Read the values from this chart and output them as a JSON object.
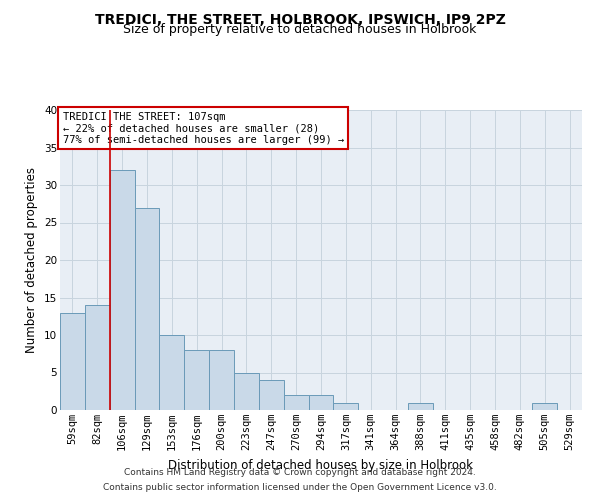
{
  "title": "TREDICI, THE STREET, HOLBROOK, IPSWICH, IP9 2PZ",
  "subtitle": "Size of property relative to detached houses in Holbrook",
  "xlabel": "Distribution of detached houses by size in Holbrook",
  "ylabel": "Number of detached properties",
  "categories": [
    "59sqm",
    "82sqm",
    "106sqm",
    "129sqm",
    "153sqm",
    "176sqm",
    "200sqm",
    "223sqm",
    "247sqm",
    "270sqm",
    "294sqm",
    "317sqm",
    "341sqm",
    "364sqm",
    "388sqm",
    "411sqm",
    "435sqm",
    "458sqm",
    "482sqm",
    "505sqm",
    "529sqm"
  ],
  "values": [
    13,
    14,
    32,
    27,
    10,
    8,
    8,
    5,
    4,
    2,
    2,
    1,
    0,
    0,
    1,
    0,
    0,
    0,
    0,
    1,
    0
  ],
  "bar_color": "#c9d9e8",
  "bar_edge_color": "#6a9ab8",
  "grid_color": "#c8d4de",
  "bg_color": "#e8eef5",
  "vline_color": "#cc0000",
  "vline_x_index": 2,
  "annotation_box_text": "TREDICI THE STREET: 107sqm\n← 22% of detached houses are smaller (28)\n77% of semi-detached houses are larger (99) →",
  "annotation_box_color": "#cc0000",
  "footer_line1": "Contains HM Land Registry data © Crown copyright and database right 2024.",
  "footer_line2": "Contains public sector information licensed under the Open Government Licence v3.0.",
  "ylim": [
    0,
    40
  ],
  "yticks": [
    0,
    5,
    10,
    15,
    20,
    25,
    30,
    35,
    40
  ],
  "title_fontsize": 10,
  "subtitle_fontsize": 9,
  "axis_label_fontsize": 8.5,
  "tick_fontsize": 7.5,
  "footer_fontsize": 6.5,
  "annotation_fontsize": 7.5
}
